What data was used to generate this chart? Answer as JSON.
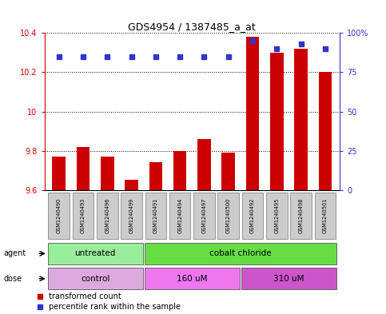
{
  "title": "GDS4954 / 1387485_a_at",
  "samples": [
    "GSM1240490",
    "GSM1240493",
    "GSM1240496",
    "GSM1240499",
    "GSM1240491",
    "GSM1240494",
    "GSM1240497",
    "GSM1240500",
    "GSM1240492",
    "GSM1240495",
    "GSM1240498",
    "GSM1240501"
  ],
  "transformed_counts": [
    9.77,
    9.82,
    9.77,
    9.65,
    9.74,
    9.8,
    9.86,
    9.79,
    10.38,
    10.3,
    10.32,
    10.2
  ],
  "percentile_ranks": [
    85,
    85,
    85,
    85,
    85,
    85,
    85,
    85,
    95,
    90,
    93,
    90
  ],
  "ymin": 9.6,
  "ymax": 10.4,
  "yticks": [
    9.6,
    9.8,
    10.0,
    10.2,
    10.4
  ],
  "ytick_labels": [
    "9.6",
    "9.8",
    "10",
    "10.2",
    "10.4"
  ],
  "right_yticks": [
    0,
    25,
    50,
    75,
    100
  ],
  "right_ylabels": [
    "0",
    "25",
    "50",
    "75",
    "100%"
  ],
  "bar_color": "#cc0000",
  "dot_color": "#3333cc",
  "agent_groups": [
    {
      "label": "untreated",
      "start": 0,
      "end": 4,
      "color": "#99ee99"
    },
    {
      "label": "cobalt chloride",
      "start": 4,
      "end": 12,
      "color": "#66dd44"
    }
  ],
  "dose_groups": [
    {
      "label": "control",
      "start": 0,
      "end": 4,
      "color": "#ddaadd"
    },
    {
      "label": "160 uM",
      "start": 4,
      "end": 8,
      "color": "#ee77ee"
    },
    {
      "label": "310 uM",
      "start": 8,
      "end": 12,
      "color": "#cc55cc"
    }
  ],
  "legend_items": [
    {
      "label": "transformed count",
      "color": "#cc0000"
    },
    {
      "label": "percentile rank within the sample",
      "color": "#3333cc"
    }
  ],
  "bg_color": "#ffffff"
}
